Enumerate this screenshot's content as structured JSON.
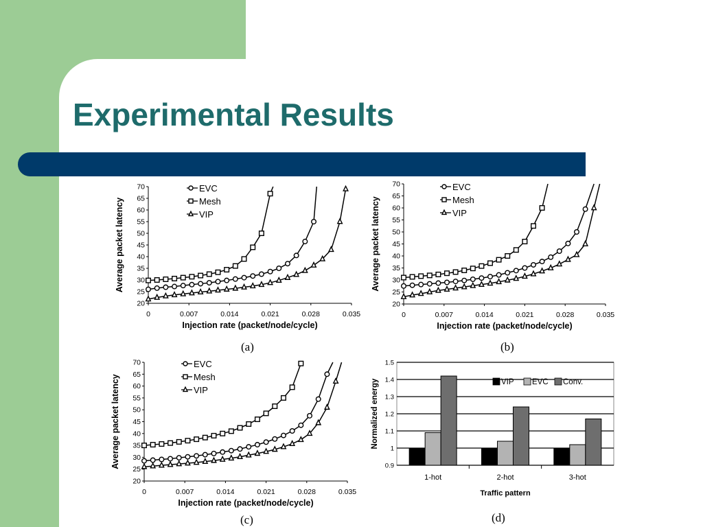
{
  "slide": {
    "title": "Experimental Results",
    "accent_color": "#9ccc95",
    "title_color": "#1e6b6b",
    "bar_color": "#003a6a"
  },
  "chart_data": [
    {
      "id": "a",
      "caption": "(a)",
      "type": "line",
      "xlabel": "Injection rate (packet/node/cycle)",
      "ylabel": "Average packet latency",
      "xlim": [
        0,
        0.035
      ],
      "ylim": [
        20,
        70
      ],
      "xticks": [
        "0",
        "0.007",
        "0.014",
        "0.021",
        "0.028",
        "0.035"
      ],
      "yticks": [
        "20",
        "25",
        "30",
        "35",
        "40",
        "45",
        "50",
        "55",
        "60",
        "65",
        "70"
      ],
      "legend_position": "top-left",
      "series": [
        {
          "name": "EVC",
          "marker": "circle",
          "x": [
            0,
            0.0015,
            0.003,
            0.0045,
            0.006,
            0.0075,
            0.009,
            0.0105,
            0.012,
            0.0135,
            0.015,
            0.0165,
            0.018,
            0.0195,
            0.021,
            0.0225,
            0.024,
            0.0255,
            0.027,
            0.0285,
            0.029
          ],
          "y": [
            26,
            26.5,
            26.9,
            27.2,
            27.6,
            28,
            28.4,
            28.8,
            29.3,
            29.8,
            30.4,
            31,
            31.7,
            32.5,
            33.6,
            35,
            37,
            40.5,
            46.5,
            55,
            70
          ]
        },
        {
          "name": "Mesh",
          "marker": "square",
          "x": [
            0,
            0.0015,
            0.003,
            0.0045,
            0.006,
            0.0075,
            0.009,
            0.0105,
            0.012,
            0.0135,
            0.015,
            0.0165,
            0.018,
            0.0195,
            0.021,
            0.0215
          ],
          "y": [
            29.8,
            30,
            30.3,
            30.6,
            31,
            31.4,
            31.9,
            32.5,
            33.3,
            34.4,
            36,
            39,
            44,
            50,
            67,
            70
          ]
        },
        {
          "name": "VIP",
          "marker": "triangle",
          "x": [
            0,
            0.0015,
            0.003,
            0.0045,
            0.006,
            0.0075,
            0.009,
            0.0105,
            0.012,
            0.0135,
            0.015,
            0.0165,
            0.018,
            0.0195,
            0.021,
            0.0225,
            0.024,
            0.0255,
            0.027,
            0.0285,
            0.03,
            0.0315,
            0.033,
            0.034
          ],
          "y": [
            21.8,
            22.5,
            23.1,
            23.6,
            24,
            24.4,
            24.8,
            25.2,
            25.6,
            26,
            26.4,
            26.9,
            27.4,
            28,
            28.8,
            29.8,
            31,
            32.3,
            34,
            36.3,
            39,
            43,
            55,
            69
          ]
        }
      ]
    },
    {
      "id": "b",
      "caption": "(b)",
      "type": "line",
      "xlabel": "Injection rate (packet/node/cycle)",
      "ylabel": "Average packet latency",
      "xlim": [
        0,
        0.035
      ],
      "ylim": [
        20,
        70
      ],
      "xticks": [
        "0",
        "0.007",
        "0.014",
        "0.021",
        "0.028",
        "0.035"
      ],
      "yticks": [
        "20",
        "25",
        "30",
        "35",
        "40",
        "45",
        "50",
        "55",
        "60",
        "65",
        "70"
      ],
      "legend_position": "top-center",
      "series": [
        {
          "name": "EVC",
          "marker": "circle",
          "x": [
            0,
            0.0015,
            0.003,
            0.0045,
            0.006,
            0.0075,
            0.009,
            0.0105,
            0.012,
            0.0135,
            0.015,
            0.0165,
            0.018,
            0.0195,
            0.021,
            0.0225,
            0.024,
            0.0255,
            0.027,
            0.0285,
            0.03,
            0.0315,
            0.033
          ],
          "y": [
            27.5,
            27.8,
            28.1,
            28.4,
            28.7,
            29,
            29.4,
            29.8,
            30.3,
            30.8,
            31.4,
            32.1,
            33,
            33.9,
            35,
            36.3,
            37.7,
            39.5,
            42,
            45.2,
            50,
            59.5,
            70
          ]
        },
        {
          "name": "Mesh",
          "marker": "square",
          "x": [
            0,
            0.0015,
            0.003,
            0.0045,
            0.006,
            0.0075,
            0.009,
            0.0105,
            0.012,
            0.0135,
            0.015,
            0.0165,
            0.018,
            0.0195,
            0.021,
            0.0225,
            0.024,
            0.025
          ],
          "y": [
            31,
            31.3,
            31.6,
            31.9,
            32.3,
            32.8,
            33.3,
            34,
            34.8,
            35.8,
            37,
            38.4,
            40,
            42.5,
            46,
            52.5,
            60,
            70
          ]
        },
        {
          "name": "VIP",
          "marker": "triangle",
          "x": [
            0,
            0.0015,
            0.003,
            0.0045,
            0.006,
            0.0075,
            0.009,
            0.0105,
            0.012,
            0.0135,
            0.015,
            0.0165,
            0.018,
            0.0195,
            0.021,
            0.0225,
            0.024,
            0.0255,
            0.027,
            0.0285,
            0.03,
            0.0315,
            0.033,
            0.034
          ],
          "y": [
            23,
            23.7,
            24.3,
            25,
            25.6,
            26.1,
            26.6,
            27.1,
            27.6,
            28.1,
            28.6,
            29.2,
            29.9,
            30.6,
            31.5,
            32.5,
            33.7,
            35,
            36.6,
            38.5,
            40.5,
            45,
            60,
            70
          ]
        }
      ]
    },
    {
      "id": "c",
      "caption": "(c)",
      "type": "line",
      "xlabel": "Injection rate (packet/node/cycle)",
      "ylabel": "Average packet latency",
      "xlim": [
        0,
        0.035
      ],
      "ylim": [
        20,
        70
      ],
      "xticks": [
        "0",
        "0.007",
        "0.014",
        "0.021",
        "0.028",
        "0.035"
      ],
      "yticks": [
        "20",
        "25",
        "30",
        "35",
        "40",
        "45",
        "50",
        "55",
        "60",
        "65",
        "70"
      ],
      "legend_position": "top-left",
      "series": [
        {
          "name": "EVC",
          "marker": "circle",
          "x": [
            0,
            0.0015,
            0.003,
            0.0045,
            0.006,
            0.0075,
            0.009,
            0.0105,
            0.012,
            0.0135,
            0.015,
            0.0165,
            0.018,
            0.0195,
            0.021,
            0.0225,
            0.024,
            0.0255,
            0.027,
            0.0285,
            0.03,
            0.0315,
            0.0325
          ],
          "y": [
            28.5,
            28.8,
            29.1,
            29.4,
            29.8,
            30.2,
            30.6,
            31.1,
            31.6,
            32.2,
            32.8,
            33.5,
            34.4,
            35.3,
            36.4,
            37.7,
            39.2,
            41.1,
            43.5,
            47.5,
            54.5,
            65,
            70
          ]
        },
        {
          "name": "Mesh",
          "marker": "square",
          "x": [
            0,
            0.0015,
            0.003,
            0.0045,
            0.006,
            0.0075,
            0.009,
            0.0105,
            0.012,
            0.0135,
            0.015,
            0.0165,
            0.018,
            0.0195,
            0.021,
            0.0225,
            0.024,
            0.0255,
            0.027
          ],
          "y": [
            35,
            35.3,
            35.6,
            36,
            36.5,
            37,
            37.6,
            38.3,
            39.1,
            40,
            41,
            42.4,
            44,
            46,
            48.5,
            51.5,
            55,
            59.5,
            69.5
          ]
        },
        {
          "name": "VIP",
          "marker": "triangle",
          "x": [
            0,
            0.0015,
            0.003,
            0.0045,
            0.006,
            0.0075,
            0.009,
            0.0105,
            0.012,
            0.0135,
            0.015,
            0.0165,
            0.018,
            0.0195,
            0.021,
            0.0225,
            0.024,
            0.0255,
            0.027,
            0.0285,
            0.03,
            0.0315,
            0.033,
            0.034
          ],
          "y": [
            26,
            26.3,
            26.6,
            26.9,
            27.2,
            27.5,
            27.8,
            28.2,
            28.6,
            29.1,
            29.6,
            30.2,
            30.9,
            31.6,
            32.4,
            33.3,
            34.4,
            35.7,
            37.4,
            40,
            44.5,
            51,
            62,
            70
          ]
        }
      ]
    },
    {
      "id": "d",
      "caption": "(d)",
      "type": "bar",
      "xlabel": "Traffic pattern",
      "ylabel": "Normalized energy",
      "ylim": [
        0.9,
        1.5
      ],
      "yticks": [
        "0.9",
        "1",
        "1.1",
        "1.2",
        "1.3",
        "1.4",
        "1.5"
      ],
      "categories": [
        "1-hot",
        "2-hot",
        "3-hot"
      ],
      "legend_position": "top-right",
      "grid": true,
      "series": [
        {
          "name": "VIP",
          "color": "#000000",
          "values": [
            1,
            1,
            1
          ]
        },
        {
          "name": "EVC",
          "color": "#b3b3b3",
          "values": [
            1.09,
            1.04,
            1.02
          ]
        },
        {
          "name": "Conv.",
          "color": "#6e6e6e",
          "values": [
            1.42,
            1.24,
            1.17
          ]
        }
      ]
    }
  ]
}
